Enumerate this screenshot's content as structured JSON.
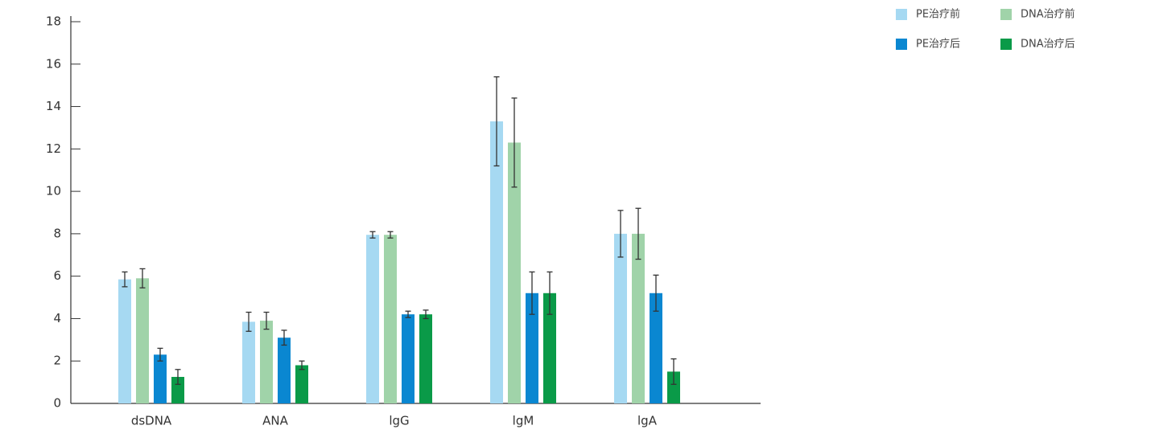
{
  "chart_data": {
    "type": "bar",
    "categories": [
      "dsDNA",
      "ANA",
      "lgG",
      "lgM",
      "lgA"
    ],
    "series": [
      {
        "name": "PE治疗前",
        "color": "#a6d9f2",
        "values": [
          5.85,
          3.85,
          7.95,
          13.3,
          8.0
        ],
        "errors": [
          0.35,
          0.45,
          0.15,
          2.1,
          1.1
        ]
      },
      {
        "name": "DNA治疗前",
        "color": "#a0d3a9",
        "values": [
          5.9,
          3.9,
          7.95,
          12.3,
          8.0
        ],
        "errors": [
          0.45,
          0.4,
          0.15,
          2.1,
          1.2
        ]
      },
      {
        "name": "PE治疗后",
        "color": "#0a87d1",
        "values": [
          2.3,
          3.1,
          4.2,
          5.2,
          5.2
        ],
        "errors": [
          0.3,
          0.35,
          0.15,
          1.0,
          0.85
        ]
      },
      {
        "name": "DNA治疗后",
        "color": "#0a9a48",
        "values": [
          1.25,
          1.8,
          4.2,
          5.2,
          1.5
        ],
        "errors": [
          0.35,
          0.2,
          0.2,
          1.0,
          0.6
        ]
      }
    ],
    "ylim": [
      0,
      18
    ],
    "yticks": [
      0,
      2,
      4,
      6,
      8,
      10,
      12,
      14,
      16,
      18
    ],
    "legend": "top-right"
  }
}
